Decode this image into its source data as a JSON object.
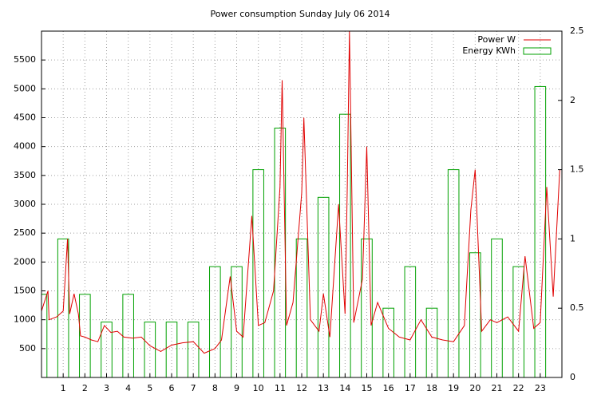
{
  "chart_data": {
    "type": "line",
    "title": "Power consumption Sunday July 06 2014",
    "xlim": [
      0,
      24
    ],
    "xticks": [
      1,
      2,
      3,
      4,
      5,
      6,
      7,
      8,
      9,
      10,
      11,
      12,
      13,
      14,
      15,
      16,
      17,
      18,
      19,
      20,
      21,
      22,
      23
    ],
    "ylim": [
      0,
      6000
    ],
    "yticks": [
      500,
      1000,
      1500,
      2000,
      2500,
      3000,
      3500,
      4000,
      4500,
      5000,
      5500
    ],
    "y2lim": [
      0,
      2.5
    ],
    "y2ticks": [
      0,
      0.5,
      1,
      1.5,
      2,
      2.5
    ],
    "grid": true,
    "legend": "top-right",
    "series": [
      {
        "name": "Power W",
        "color": "#e00000",
        "style": "line",
        "x": [
          0,
          0.3,
          0.35,
          0.7,
          1.0,
          1.2,
          1.3,
          1.5,
          1.7,
          1.8,
          2.0,
          2.3,
          2.6,
          2.9,
          3.2,
          3.5,
          3.8,
          4.2,
          4.6,
          5.0,
          5.5,
          6.0,
          6.5,
          7.0,
          7.5,
          8.0,
          8.3,
          8.7,
          9.0,
          9.3,
          9.7,
          10.0,
          10.3,
          10.7,
          11.0,
          11.1,
          11.3,
          11.6,
          12.0,
          12.1,
          12.4,
          12.8,
          13.0,
          13.3,
          13.7,
          14.0,
          14.1,
          14.2,
          14.4,
          14.8,
          15.0,
          15.2,
          15.5,
          16.0,
          16.5,
          17.0,
          17.5,
          18.0,
          18.5,
          19.0,
          19.5,
          19.8,
          20.0,
          20.3,
          20.7,
          21.0,
          21.5,
          22.0,
          22.3,
          22.7,
          23.0,
          23.3,
          23.6,
          23.9
        ],
        "values": [
          1150,
          1500,
          1000,
          1050,
          1150,
          2400,
          1100,
          1450,
          1100,
          720,
          700,
          650,
          620,
          900,
          780,
          800,
          700,
          680,
          700,
          550,
          450,
          560,
          600,
          620,
          420,
          500,
          650,
          1750,
          800,
          700,
          2800,
          900,
          950,
          1500,
          3300,
          5150,
          900,
          1300,
          3200,
          4500,
          1000,
          800,
          1450,
          700,
          3000,
          1100,
          3300,
          6000,
          950,
          1700,
          4000,
          900,
          1300,
          850,
          700,
          650,
          1000,
          700,
          650,
          620,
          900,
          2900,
          3600,
          800,
          1000,
          950,
          1050,
          800,
          2100,
          850,
          950,
          3300,
          1400,
          3600
        ]
      },
      {
        "name": "Energy KWh",
        "color": "#00a000",
        "style": "boxes",
        "axis": "y2",
        "x": [
          0,
          1,
          2,
          3,
          4,
          5,
          6,
          7,
          8,
          9,
          10,
          11,
          12,
          13,
          14,
          15,
          16,
          17,
          18,
          19,
          20,
          21,
          22,
          23
        ],
        "values": [
          0.6,
          1.0,
          0.6,
          0.4,
          0.6,
          0.4,
          0.4,
          0.4,
          0.8,
          0.8,
          1.5,
          1.8,
          1.0,
          1.3,
          1.9,
          1.0,
          0.5,
          0.8,
          0.5,
          1.5,
          0.9,
          1.0,
          0.8,
          2.1
        ]
      }
    ]
  }
}
